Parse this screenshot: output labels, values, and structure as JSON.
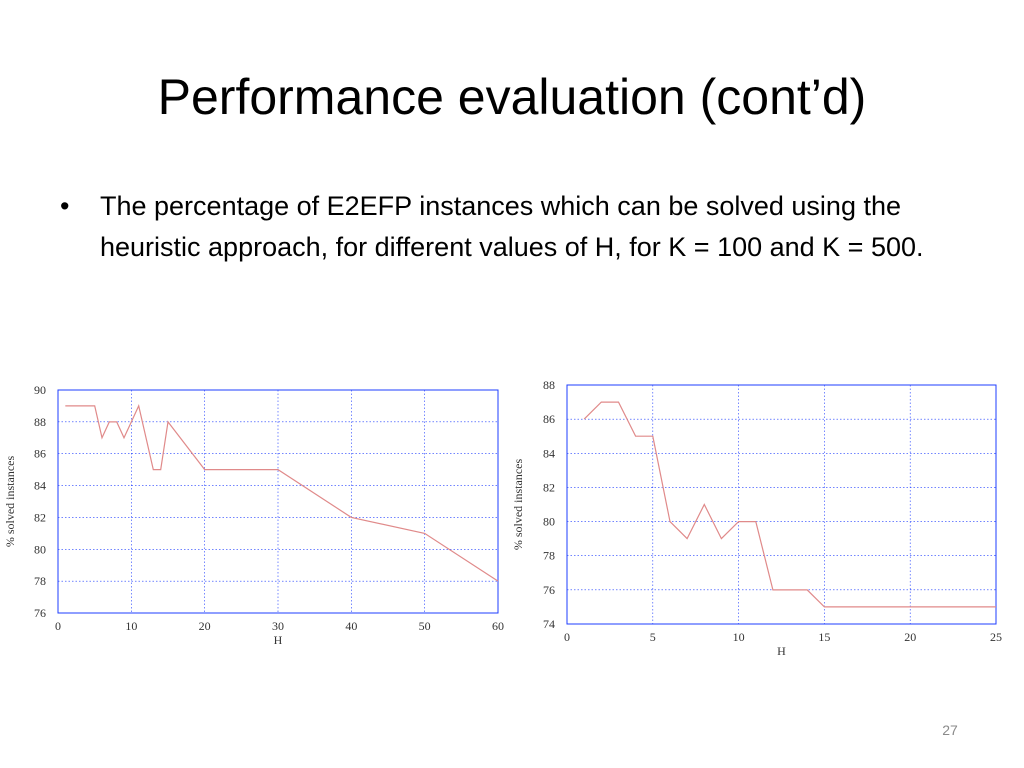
{
  "slide": {
    "title": "Performance evaluation (cont’d)",
    "bullet_char": "•",
    "bullet_text": "The percentage of E2EFP instances which can be solved using the heuristic approach, for different values of H, for K = 100 and K = 500.",
    "slide_number": "27"
  },
  "style": {
    "grid_color": "#1e3cff",
    "axis_color": "#333333",
    "line_color": "#e08a8a",
    "text_color": "#333333"
  },
  "chart_data": [
    {
      "type": "line",
      "title": "",
      "xlabel": "H",
      "ylabel": "% solved instances",
      "xlim": [
        0,
        60
      ],
      "ylim": [
        76,
        90
      ],
      "xticks": [
        0,
        10,
        20,
        30,
        40,
        50,
        60
      ],
      "yticks": [
        76,
        78,
        80,
        82,
        84,
        86,
        88,
        90
      ],
      "grid": true,
      "series": [
        {
          "x": [
            1,
            5,
            6,
            7,
            8,
            9,
            11,
            13,
            14,
            15,
            20,
            30,
            40,
            50,
            60
          ],
          "y": [
            89,
            89,
            87,
            88,
            88,
            87,
            89,
            85,
            85,
            88,
            85,
            85,
            82,
            81,
            78
          ]
        }
      ]
    },
    {
      "type": "line",
      "title": "",
      "xlabel": "H",
      "ylabel": "% solved instances",
      "xlim": [
        0,
        25
      ],
      "ylim": [
        74,
        88
      ],
      "xticks": [
        0,
        5,
        10,
        15,
        20,
        25
      ],
      "yticks": [
        74,
        76,
        78,
        80,
        82,
        84,
        86,
        88
      ],
      "grid": true,
      "series": [
        {
          "x": [
            1,
            2,
            3,
            4,
            5,
            6,
            7,
            8,
            9,
            10,
            11,
            12,
            13,
            14,
            15,
            16,
            17,
            18,
            19,
            20,
            21,
            22,
            23,
            24,
            25
          ],
          "y": [
            86,
            87,
            87,
            85,
            85,
            80,
            79,
            81,
            79,
            80,
            80,
            76,
            76,
            76,
            75,
            75,
            75,
            75,
            75,
            75,
            75,
            75,
            75,
            75,
            75
          ]
        }
      ]
    }
  ]
}
